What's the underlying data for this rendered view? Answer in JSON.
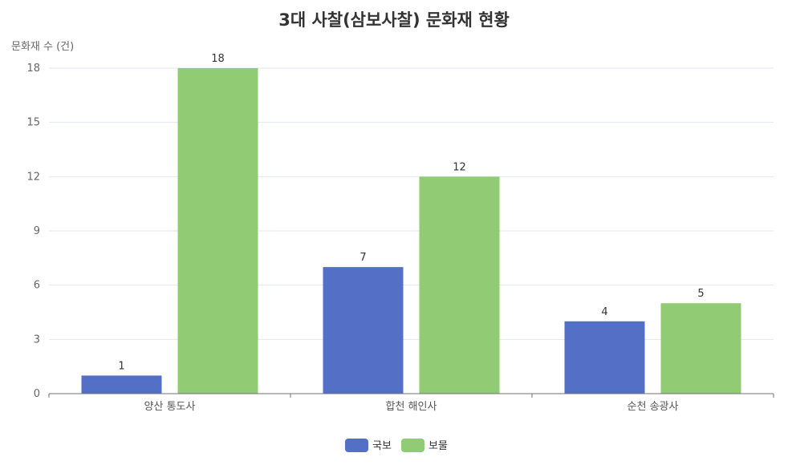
{
  "chart_data": {
    "type": "bar",
    "title": "3대 사찰(삼보사찰) 문화재 현황",
    "ylabel": "문화재 수 (건)",
    "xlabel": "",
    "categories": [
      "양산 통도사",
      "합천 해인사",
      "순천 송광사"
    ],
    "series": [
      {
        "name": "국보",
        "color": "#5470c6",
        "values": [
          1,
          7,
          4
        ]
      },
      {
        "name": "보물",
        "color": "#91cc75",
        "values": [
          18,
          12,
          5
        ]
      }
    ],
    "ylim": [
      0,
      18
    ],
    "yticks": [
      0,
      3,
      6,
      9,
      12,
      15,
      18
    ],
    "grid": true,
    "legend_position": "bottom-center",
    "data_labels": true
  }
}
